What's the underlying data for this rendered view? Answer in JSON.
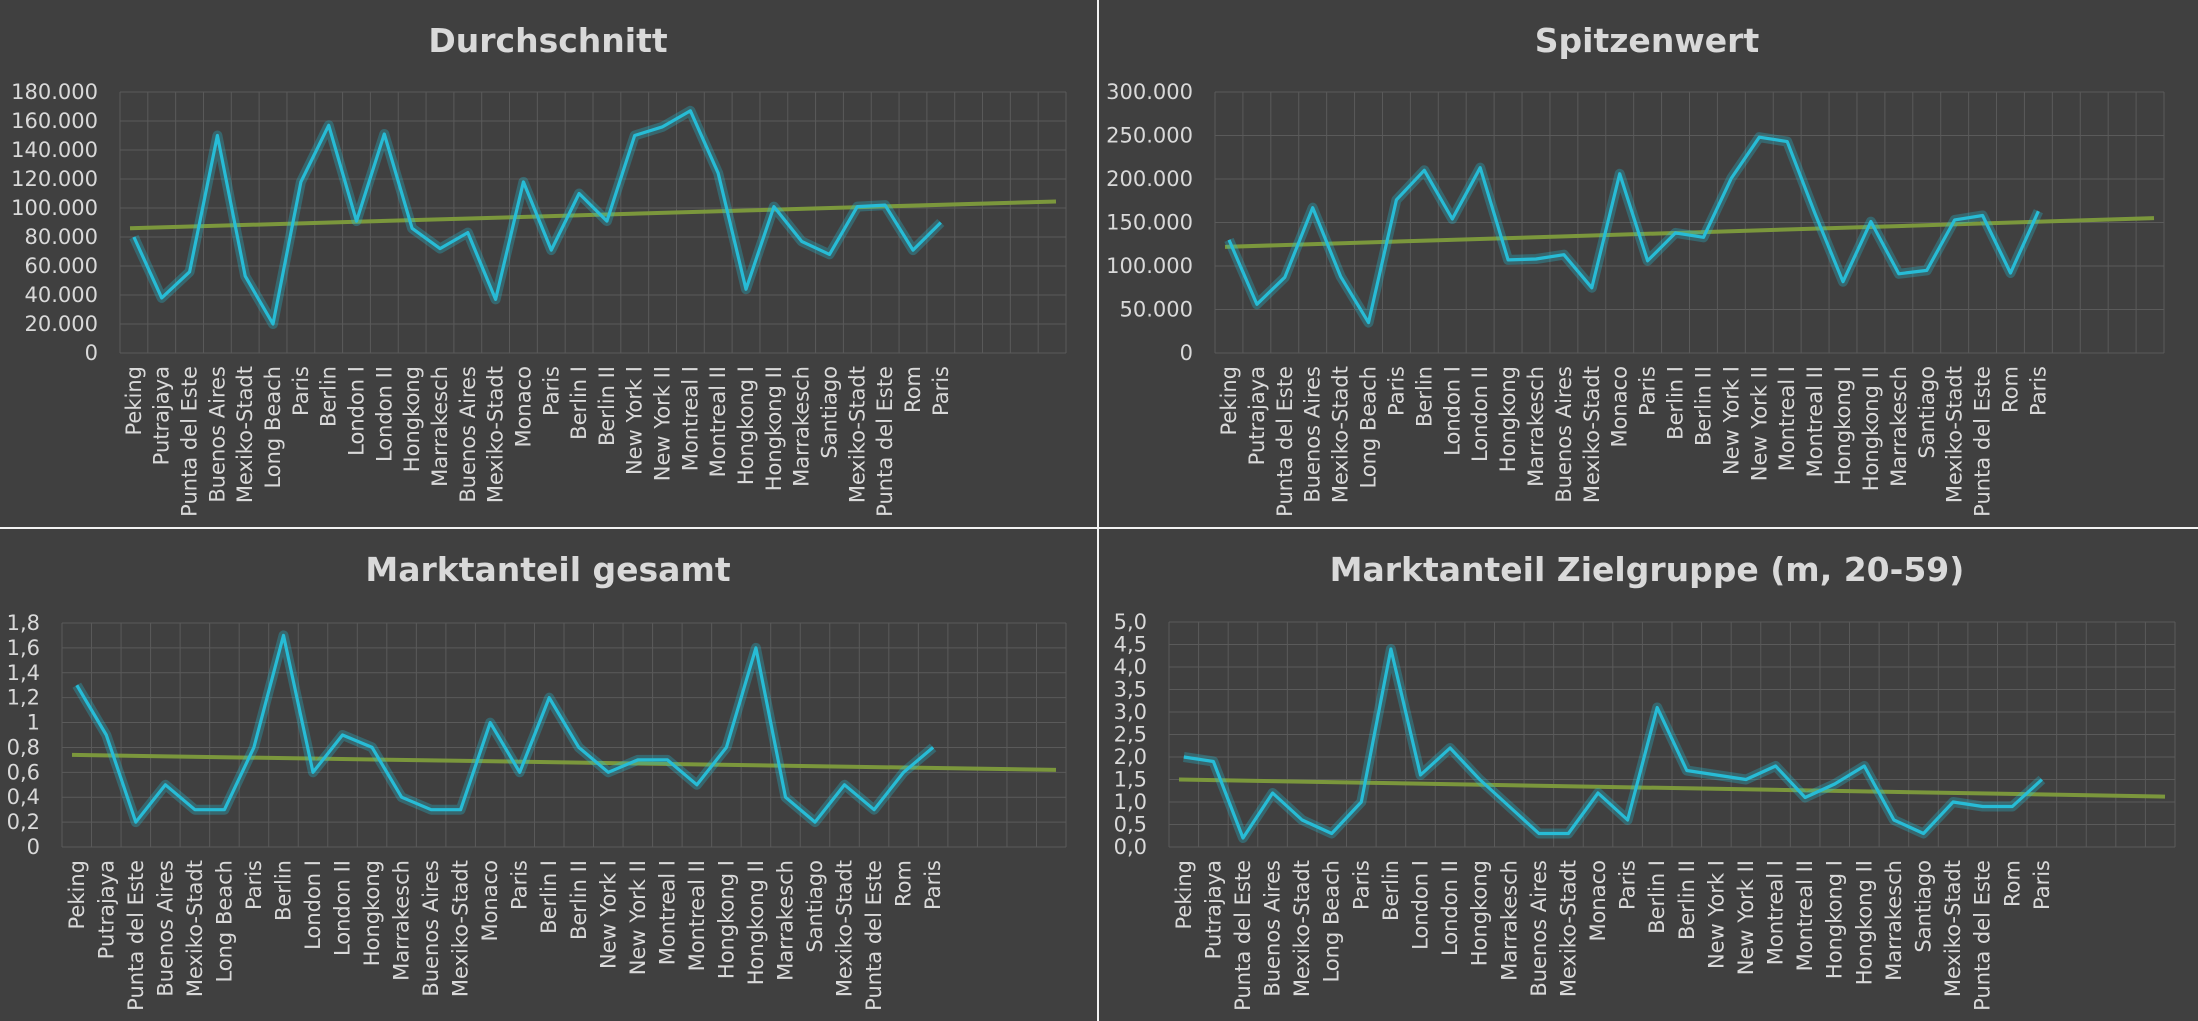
{
  "colors": {
    "background": "#404040",
    "divider": "#f2f2f2",
    "grid": "#5a5a5a",
    "text": "#d9d9d9",
    "series": "#27bcd6",
    "trendline": "#7e9c3c"
  },
  "chart_data": [
    {
      "type": "line",
      "title": "Durchschnitt",
      "categories": [
        "Peking",
        "Putrajaya",
        "Punta del Este",
        "Buenos Aires",
        "Mexiko-Stadt",
        "Long Beach",
        "Paris",
        "Berlin",
        "London I",
        "London II",
        "Hongkong",
        "Marrakesch",
        "Buenos Aires",
        "Mexiko-Stadt",
        "Monaco",
        "Paris",
        "Berlin I",
        "Berlin II",
        "New York I",
        "New York II",
        "Montreal I",
        "Montreal II",
        "Hongkong I",
        "Hongkong II",
        "Marrakesch",
        "Santiago",
        "Mexiko-Stadt",
        "Punta del Este",
        "Rom",
        "Paris"
      ],
      "values": [
        80000,
        38000,
        56000,
        150000,
        53000,
        20000,
        118000,
        157000,
        91000,
        151000,
        86000,
        72000,
        83000,
        37000,
        118000,
        71000,
        110000,
        91000,
        150000,
        156000,
        167000,
        124000,
        44000,
        101000,
        77000,
        68000,
        101000,
        102000,
        71000,
        90000
      ],
      "trendline": {
        "start": 86000,
        "end": 104500
      },
      "ylim": [
        0,
        180000
      ],
      "yticks": [
        0,
        20000,
        40000,
        60000,
        80000,
        100000,
        120000,
        140000,
        160000,
        180000
      ],
      "ytick_labels": [
        "0",
        "20.000",
        "40.000",
        "60.000",
        "80.000",
        "100.000",
        "120.000",
        "140.000",
        "160.000",
        "180.000"
      ],
      "grid": true
    },
    {
      "type": "line",
      "title": "Spitzenwert",
      "categories": [
        "Peking",
        "Putrajaya",
        "Punta del Este",
        "Buenos Aires",
        "Mexiko-Stadt",
        "Long Beach",
        "Paris",
        "Berlin",
        "London I",
        "London II",
        "Hongkong",
        "Marrakesch",
        "Buenos Aires",
        "Mexiko-Stadt",
        "Monaco",
        "Paris",
        "Berlin I",
        "Berlin II",
        "New York I",
        "New York II",
        "Montreal I",
        "Montreal II",
        "Hongkong I",
        "Hongkong II",
        "Marrakesch",
        "Santiago",
        "Mexiko-Stadt",
        "Punta del Este",
        "Rom",
        "Paris"
      ],
      "values": [
        130000,
        56000,
        87000,
        167000,
        88000,
        35000,
        176000,
        210000,
        154000,
        213000,
        107000,
        108000,
        113000,
        75000,
        206000,
        106000,
        138000,
        133000,
        201000,
        248000,
        243000,
        160000,
        82000,
        151000,
        91000,
        95000,
        153000,
        158000,
        92000,
        163000
      ],
      "trendline": {
        "start": 122000,
        "end": 155000
      },
      "ylim": [
        0,
        300000
      ],
      "yticks": [
        0,
        50000,
        100000,
        150000,
        200000,
        250000,
        300000
      ],
      "ytick_labels": [
        "0",
        "50.000",
        "100.000",
        "150.000",
        "200.000",
        "250.000",
        "300.000"
      ],
      "grid": true
    },
    {
      "type": "line",
      "title": "Marktanteil gesamt",
      "categories": [
        "Peking",
        "Putrajaya",
        "Punta del Este",
        "Buenos Aires",
        "Mexiko-Stadt",
        "Long Beach",
        "Paris",
        "Berlin",
        "London I",
        "London II",
        "Hongkong",
        "Marrakesch",
        "Buenos Aires",
        "Mexiko-Stadt",
        "Monaco",
        "Paris",
        "Berlin I",
        "Berlin II",
        "New York I",
        "New York II",
        "Montreal I",
        "Montreal II",
        "Hongkong I",
        "Hongkong II",
        "Marrakesch",
        "Santiago",
        "Mexiko-Stadt",
        "Punta del Este",
        "Rom",
        "Paris"
      ],
      "values": [
        1.3,
        0.9,
        0.2,
        0.5,
        0.3,
        0.3,
        0.8,
        1.7,
        0.6,
        0.9,
        0.8,
        0.4,
        0.3,
        0.3,
        1.0,
        0.6,
        1.2,
        0.8,
        0.6,
        0.7,
        0.7,
        0.5,
        0.8,
        1.6,
        0.4,
        0.2,
        0.5,
        0.3,
        0.6,
        0.8
      ],
      "trendline": {
        "start": 0.74,
        "end": 0.62
      },
      "ylim": [
        0,
        1.8
      ],
      "yticks": [
        0,
        0.2,
        0.4,
        0.6,
        0.8,
        1,
        1.2,
        1.4,
        1.6,
        1.8
      ],
      "ytick_labels": [
        "0",
        "0,2",
        "0,4",
        "0,6",
        "0,8",
        "1",
        "1,2",
        "1,4",
        "1,6",
        "1,8"
      ],
      "grid": true
    },
    {
      "type": "line",
      "title": "Marktanteil Zielgruppe (m, 20-59)",
      "categories": [
        "Peking",
        "Putrajaya",
        "Punta del Este",
        "Buenos Aires",
        "Mexiko-Stadt",
        "Long Beach",
        "Paris",
        "Berlin",
        "London I",
        "London II",
        "Hongkong",
        "Marrakesch",
        "Buenos Aires",
        "Mexiko-Stadt",
        "Monaco",
        "Paris",
        "Berlin I",
        "Berlin II",
        "New York I",
        "New York II",
        "Montreal I",
        "Montreal II",
        "Hongkong I",
        "Hongkong II",
        "Marrakesch",
        "Santiago",
        "Mexiko-Stadt",
        "Punta del Este",
        "Rom",
        "Paris"
      ],
      "values": [
        2.0,
        1.9,
        0.2,
        1.2,
        0.6,
        0.3,
        1.0,
        4.4,
        1.6,
        2.2,
        1.5,
        0.9,
        0.3,
        0.3,
        1.2,
        0.6,
        3.1,
        1.7,
        1.6,
        1.5,
        1.8,
        1.1,
        1.4,
        1.8,
        0.6,
        0.3,
        1.0,
        0.9,
        0.9,
        1.5
      ],
      "trendline": {
        "start": 1.5,
        "end": 1.12
      },
      "ylim": [
        0,
        5.0
      ],
      "yticks": [
        0,
        0.5,
        1.0,
        1.5,
        2.0,
        2.5,
        3.0,
        3.5,
        4.0,
        4.5,
        5.0
      ],
      "ytick_labels": [
        "0,0",
        "0,5",
        "1,0",
        "1,5",
        "2,0",
        "2,5",
        "3,0",
        "3,5",
        "4,0",
        "4,5",
        "5,0"
      ],
      "grid": true
    }
  ]
}
